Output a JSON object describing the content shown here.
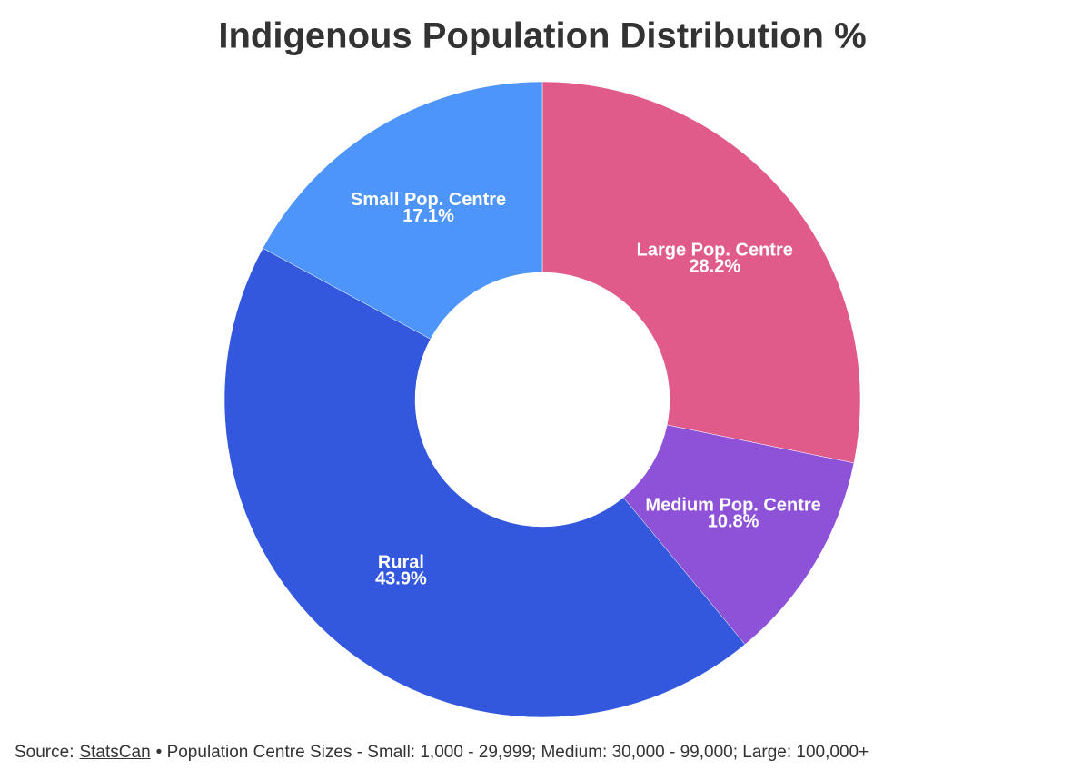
{
  "chart_data": {
    "type": "donut",
    "title": "Indigenous Population Distribution %",
    "categories": [
      "Large Pop. Centre",
      "Medium Pop. Centre",
      "Rural",
      "Small Pop. Centre"
    ],
    "values": [
      28.2,
      10.8,
      43.9,
      17.1
    ],
    "value_labels": [
      "28.2%",
      "10.8%",
      "43.9%",
      "17.1%"
    ],
    "colors": [
      "#e05a8a",
      "#8e52d8",
      "#3358dd",
      "#4d94fb"
    ]
  },
  "footer": {
    "source_label": "Source:",
    "source_link": "StatsCan",
    "note": "• Population Centre Sizes - Small: 1,000 - 29,999; Medium: 30,000 - 99,000; Large: 100,000+"
  }
}
